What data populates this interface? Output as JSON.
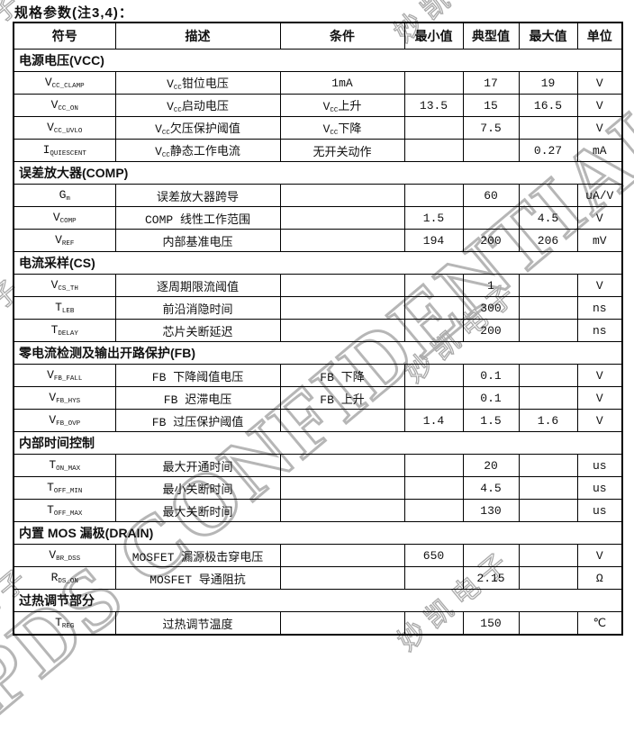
{
  "page": {
    "title": "规格参数(注3,4)："
  },
  "watermarks": {
    "confidential": "PDS CONFIDENTIAL",
    "company": "妙凯电子"
  },
  "table": {
    "headers": [
      "符号",
      "描述",
      "条件",
      "最小值",
      "典型值",
      "最大值",
      "单位"
    ],
    "sections": [
      {
        "title": "电源电压(VCC)",
        "rows": [
          {
            "symbol": "V~CC_CLAMP~",
            "desc": "V~CC~钳位电压",
            "cond": "1mA",
            "min": "",
            "typ": "17",
            "max": "19",
            "unit": "V"
          },
          {
            "symbol": "V~CC_ON~",
            "desc": "V~CC~启动电压",
            "cond": "V~CC~上升",
            "min": "13.5",
            "typ": "15",
            "max": "16.5",
            "unit": "V"
          },
          {
            "symbol": "V~CC_UVLO~",
            "desc": "V~CC~欠压保护阈值",
            "cond": "V~CC~下降",
            "min": "",
            "typ": "7.5",
            "max": "",
            "unit": "V"
          },
          {
            "symbol": "I~QUIESCENT~",
            "desc": "V~CC~静态工作电流",
            "cond": "无开关动作",
            "min": "",
            "typ": "",
            "max": "0.27",
            "unit": "mA"
          }
        ]
      },
      {
        "title": "误差放大器(COMP)",
        "rows": [
          {
            "symbol": "G~m~",
            "desc": "误差放大器跨导",
            "cond": "",
            "min": "",
            "typ": "60",
            "max": "",
            "unit": "uA/V"
          },
          {
            "symbol": "V~COMP~",
            "desc": "COMP 线性工作范围",
            "cond": "",
            "min": "1.5",
            "typ": "",
            "max": "4.5",
            "unit": "V"
          },
          {
            "symbol": "V~REF~",
            "desc": "内部基准电压",
            "cond": "",
            "min": "194",
            "typ": "200",
            "max": "206",
            "unit": "mV"
          }
        ]
      },
      {
        "title": "电流采样(CS)",
        "rows": [
          {
            "symbol": "V~CS_TH~",
            "desc": "逐周期限流阈值",
            "cond": "",
            "min": "",
            "typ": "1",
            "max": "",
            "unit": "V"
          },
          {
            "symbol": "T~LEB~",
            "desc": "前沿消隐时间",
            "cond": "",
            "min": "",
            "typ": "300",
            "max": "",
            "unit": "ns"
          },
          {
            "symbol": "T~DELAY~",
            "desc": "芯片关断延迟",
            "cond": "",
            "min": "",
            "typ": "200",
            "max": "",
            "unit": "ns"
          }
        ]
      },
      {
        "title": "零电流检测及输出开路保护(FB)",
        "rows": [
          {
            "symbol": "V~FB_FALL~",
            "desc": "FB 下降阈值电压",
            "cond": "FB 下降",
            "min": "",
            "typ": "0.1",
            "max": "",
            "unit": "V"
          },
          {
            "symbol": "V~FB_HYS~",
            "desc": "FB 迟滞电压",
            "cond": "FB 上升",
            "min": "",
            "typ": "0.1",
            "max": "",
            "unit": "V"
          },
          {
            "symbol": "V~FB_OVP~",
            "desc": "FB 过压保护阈值",
            "cond": "",
            "min": "1.4",
            "typ": "1.5",
            "max": "1.6",
            "unit": "V"
          }
        ]
      },
      {
        "title": "内部时间控制",
        "rows": [
          {
            "symbol": "T~ON_MAX~",
            "desc": "最大开通时间",
            "cond": "",
            "min": "",
            "typ": "20",
            "max": "",
            "unit": "us"
          },
          {
            "symbol": "T~OFF_MIN~",
            "desc": "最小关断时间",
            "cond": "",
            "min": "",
            "typ": "4.5",
            "max": "",
            "unit": "us"
          },
          {
            "symbol": "T~OFF_MAX~",
            "desc": "最大关断时间",
            "cond": "",
            "min": "",
            "typ": "130",
            "max": "",
            "unit": "us"
          }
        ]
      },
      {
        "title": "内置 MOS 漏极(DRAIN)",
        "rows": [
          {
            "symbol": "V~BR_DSS~",
            "desc": "MOSFET 漏源极击穿电压",
            "cond": "",
            "min": "650",
            "typ": "",
            "max": "",
            "unit": "V"
          },
          {
            "symbol": "R~DS_ON~",
            "desc": "MOSFET 导通阻抗",
            "cond": "",
            "min": "",
            "typ": "2.15",
            "max": "",
            "unit": "Ω"
          }
        ]
      },
      {
        "title": "过热调节部分",
        "rows": [
          {
            "symbol": "T~REG~",
            "desc": "过热调节温度",
            "cond": "",
            "min": "",
            "typ": "150",
            "max": "",
            "unit": "℃"
          }
        ]
      }
    ]
  }
}
